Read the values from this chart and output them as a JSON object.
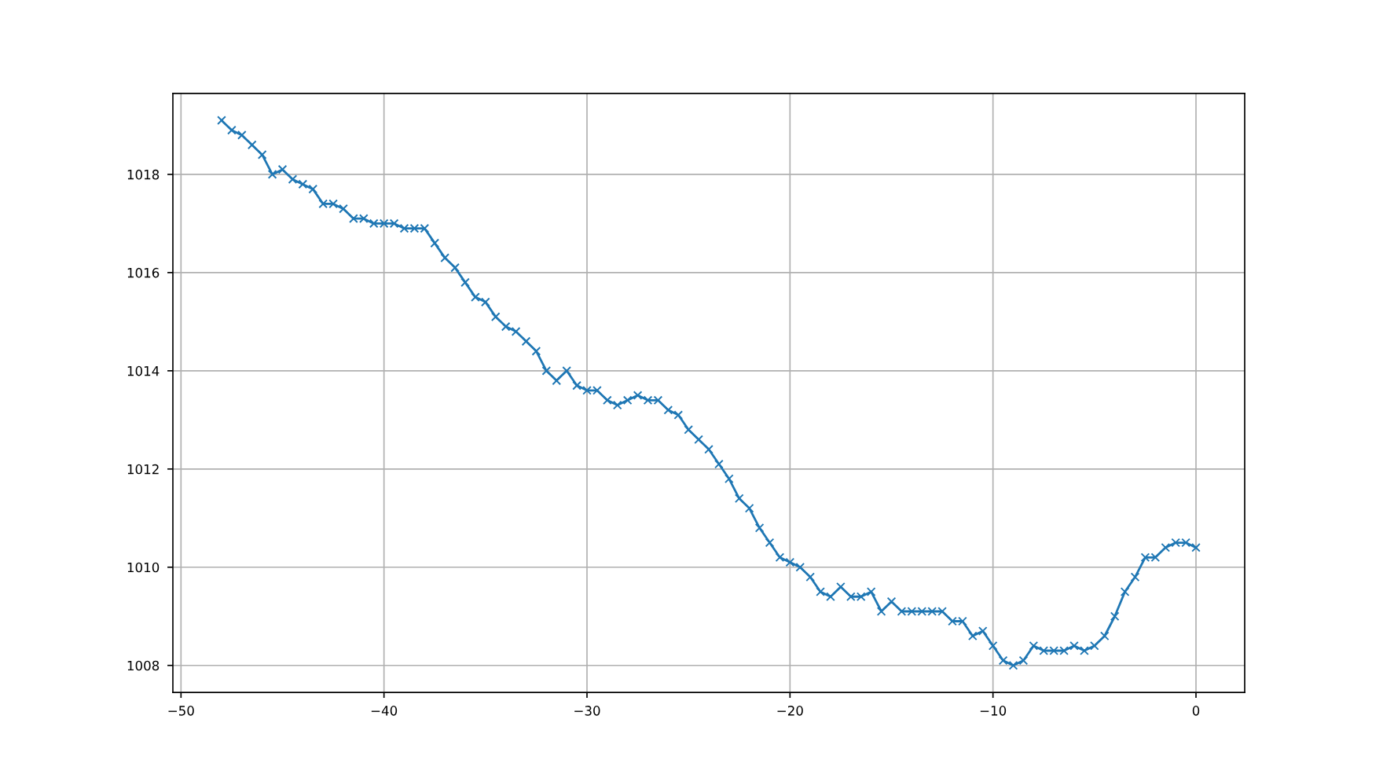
{
  "chart_data": {
    "type": "line",
    "x": [
      -48,
      -47.5,
      -47,
      -46.5,
      -46,
      -45.5,
      -45,
      -44.5,
      -44,
      -43.5,
      -43,
      -42.5,
      -42,
      -41.5,
      -41,
      -40.5,
      -40,
      -39.5,
      -39,
      -38.5,
      -38,
      -37.5,
      -37,
      -36.5,
      -36,
      -35.5,
      -35,
      -34.5,
      -34,
      -33.5,
      -33,
      -32.5,
      -32,
      -31.5,
      -31,
      -30.5,
      -30,
      -29.5,
      -29,
      -28.5,
      -28,
      -27.5,
      -27,
      -26.5,
      -26,
      -25.5,
      -25,
      -24.5,
      -24,
      -23.5,
      -23,
      -22.5,
      -22,
      -21.5,
      -21,
      -20.5,
      -20,
      -19.5,
      -19,
      -18.5,
      -18,
      -17.5,
      -17,
      -16.5,
      -16,
      -15.5,
      -15,
      -14.5,
      -14,
      -13.5,
      -13,
      -12.5,
      -12,
      -11.5,
      -11,
      -10.5,
      -10,
      -9.5,
      -9,
      -8.5,
      -8,
      -7.5,
      -7,
      -6.5,
      -6,
      -5.5,
      -5,
      -4.5,
      -4,
      -3.5,
      -3,
      -2.5,
      -2,
      -1.5,
      -1,
      -0.5,
      0
    ],
    "series": [
      {
        "color": "#1f77b4",
        "values": [
          1019.1,
          1018.9,
          1018.8,
          1018.6,
          1018.4,
          1018.0,
          1018.1,
          1017.9,
          1017.8,
          1017.7,
          1017.4,
          1017.4,
          1017.3,
          1017.1,
          1017.1,
          1017.0,
          1017.0,
          1017.0,
          1016.9,
          1016.9,
          1016.9,
          1016.6,
          1016.3,
          1016.1,
          1015.8,
          1015.5,
          1015.4,
          1015.1,
          1014.9,
          1014.8,
          1014.6,
          1014.4,
          1014.0,
          1013.8,
          1014.0,
          1013.7,
          1013.6,
          1013.6,
          1013.4,
          1013.3,
          1013.4,
          1013.5,
          1013.4,
          1013.4,
          1013.2,
          1013.1,
          1012.8,
          1012.6,
          1012.4,
          1012.1,
          1011.8,
          1011.4,
          1011.2,
          1010.8,
          1010.5,
          1010.2,
          1010.1,
          1010.0,
          1009.8,
          1009.5,
          1009.4,
          1009.6,
          1009.4,
          1009.4,
          1009.5,
          1009.1,
          1009.3,
          1009.1,
          1009.1,
          1009.1,
          1009.1,
          1009.1,
          1008.9,
          1008.9,
          1008.6,
          1008.7,
          1008.4,
          1008.1,
          1008.0,
          1008.1,
          1008.4,
          1008.3,
          1008.3,
          1008.3,
          1008.4,
          1008.3,
          1008.4,
          1008.6,
          1009.0,
          1009.5,
          1009.8,
          1010.2,
          1010.2,
          1010.4,
          1010.5,
          1010.5,
          1010.4
        ]
      }
    ],
    "xlim": [
      -50.4,
      2.4
    ],
    "xticks": [
      {
        "value": -50,
        "label": "−50"
      },
      {
        "value": -40,
        "label": "−40"
      },
      {
        "value": -30,
        "label": "−30"
      },
      {
        "value": -20,
        "label": "−20"
      },
      {
        "value": -10,
        "label": "−10"
      },
      0
    ],
    "ylim": [
      1007.45,
      1019.65
    ],
    "yticks": [
      1008,
      1010,
      1012,
      1014,
      1016,
      1018
    ],
    "grid": true,
    "marker": "cross",
    "line_style": "solid"
  }
}
